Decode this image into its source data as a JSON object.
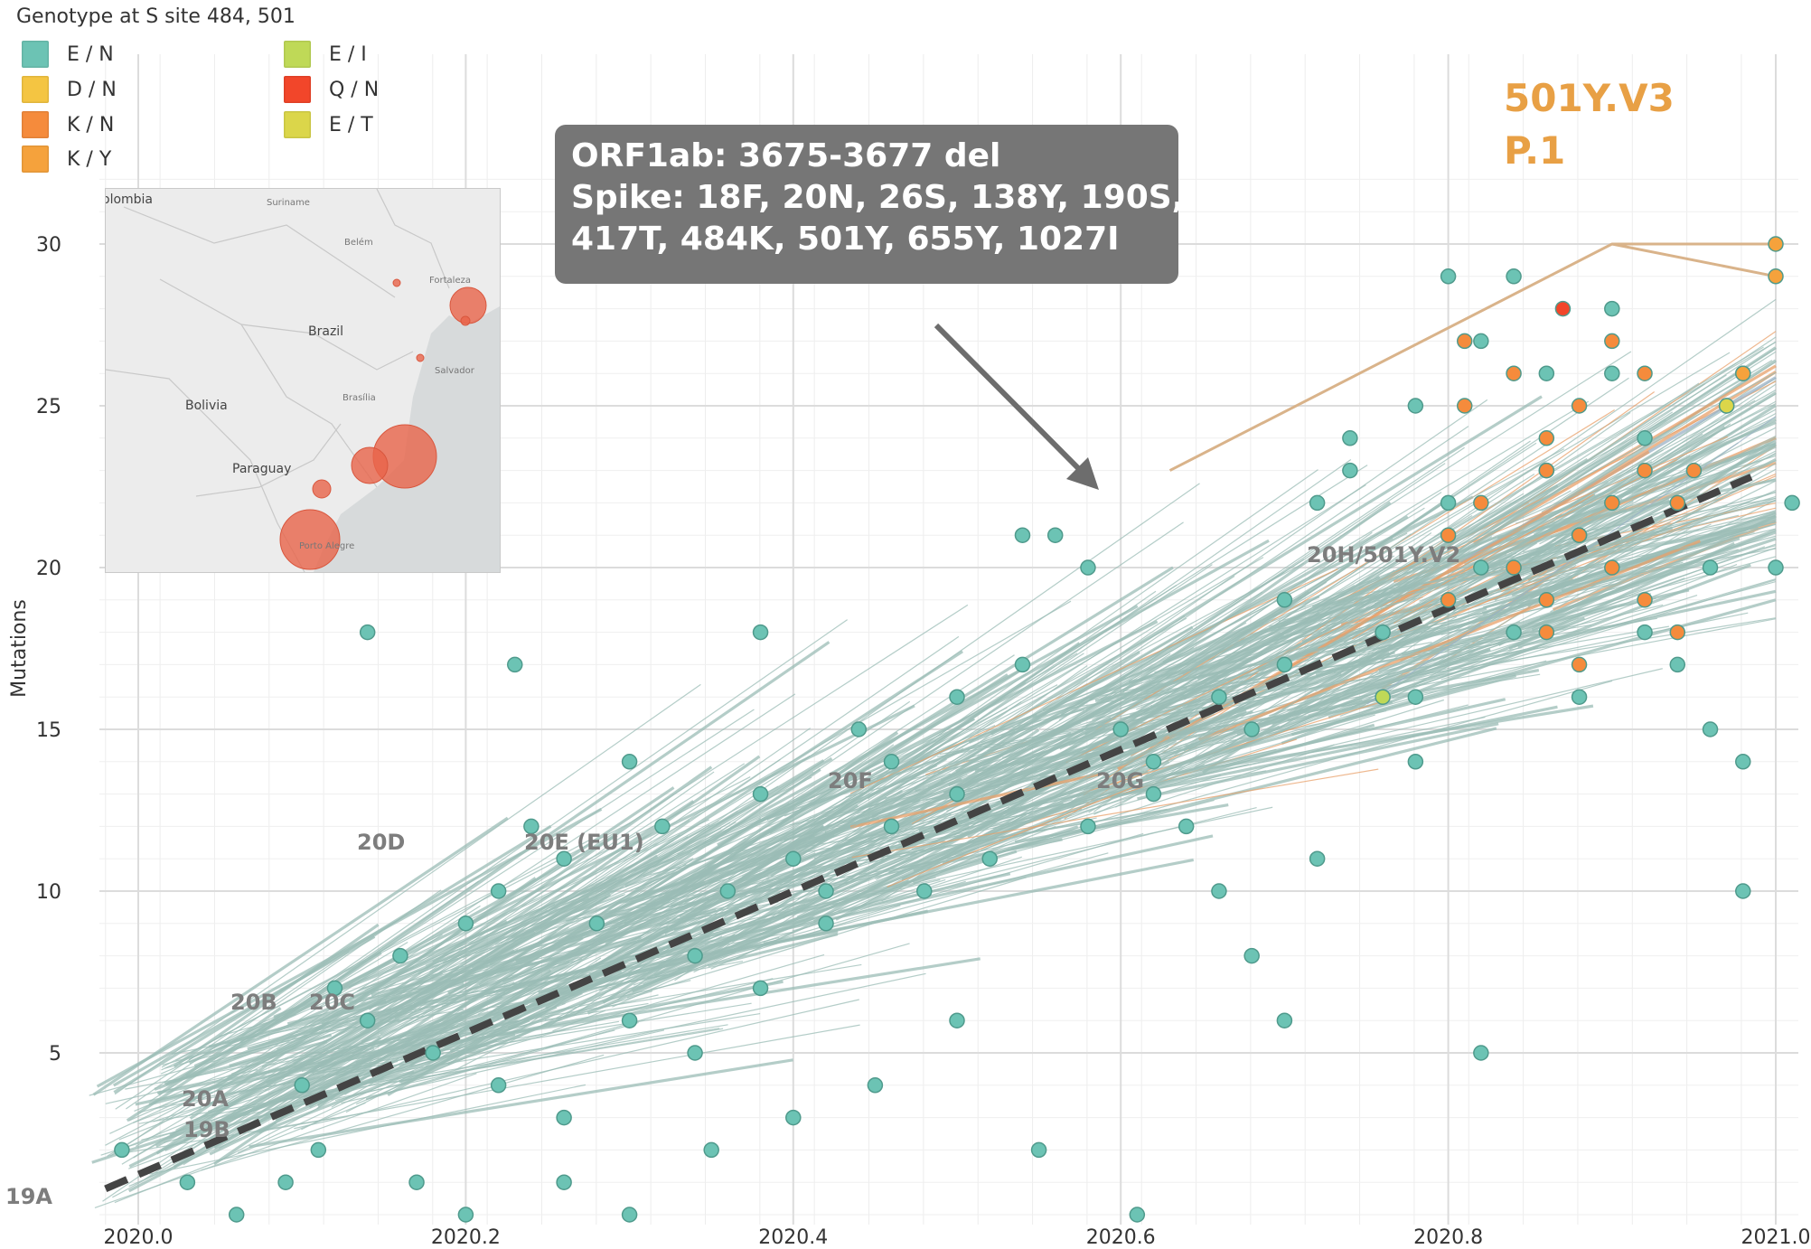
{
  "legend": {
    "title": "Genotype at S site 484, 501",
    "items": [
      {
        "label": "E / N",
        "color": "#6cc3b4"
      },
      {
        "label": "D / N",
        "color": "#f4c542"
      },
      {
        "label": "K / N",
        "color": "#f58b3c"
      },
      {
        "label": "K / Y",
        "color": "#f5a23c"
      },
      {
        "label": "E / I",
        "color": "#bfd957"
      },
      {
        "label": "Q / N",
        "color": "#f2462a"
      },
      {
        "label": "E / T",
        "color": "#dbd64a"
      }
    ]
  },
  "map": {
    "countries": [
      "olombia",
      "Brazil",
      "Bolivia",
      "Paraguay"
    ],
    "cities": [
      "Suriname",
      "Belém",
      "Fortaleza",
      "Salvador",
      "Brasília",
      "Porto Alegre"
    ],
    "bubble_color": "#e8644a"
  },
  "annotation": {
    "lines": [
      "ORF1ab: 3675-3677 del",
      "Spike: 18F, 20N, 26S, 138Y, 190S,",
      "417T, 484K, 501Y, 655Y, 1027I"
    ]
  },
  "variant_labels": [
    "501Y.V3",
    "P.1"
  ],
  "clade_labels": [
    "19A",
    "19B",
    "20A",
    "20B",
    "20C",
    "20D",
    "20E (EU1)",
    "20F",
    "20G",
    "20H/501Y.V2"
  ],
  "chart_data": {
    "type": "scatter",
    "title": "",
    "xlabel": "",
    "ylabel": "Mutations",
    "xlim": [
      2019.955,
      2021.01
    ],
    "ylim": [
      0,
      32.5
    ],
    "x_ticks": [
      "2020.0",
      "2020.2",
      "2020.4",
      "2020.6",
      "2020.8",
      "2021.0"
    ],
    "y_ticks": [
      "5",
      "10",
      "15",
      "20",
      "25",
      "30"
    ],
    "grid": true,
    "legend_position": "top-left",
    "clock_rate_line": {
      "style": "dashed",
      "color": "#444444",
      "x": [
        2019.98,
        2020.985
      ],
      "y": [
        0.8,
        22.8
      ]
    },
    "series": [
      {
        "name": "E / N",
        "color": "#6cc3b4",
        "points": [
          [
            2019.99,
            2
          ],
          [
            2020.14,
            18
          ],
          [
            2020.23,
            17
          ],
          [
            2020.38,
            18
          ],
          [
            2020.03,
            1
          ],
          [
            2020.06,
            0
          ],
          [
            2020.09,
            1
          ],
          [
            2020.11,
            2
          ],
          [
            2020.17,
            1
          ],
          [
            2020.2,
            0
          ],
          [
            2020.26,
            1
          ],
          [
            2020.3,
            0
          ],
          [
            2020.35,
            2
          ],
          [
            2020.4,
            3
          ],
          [
            2020.45,
            4
          ],
          [
            2020.5,
            6
          ],
          [
            2020.55,
            2
          ],
          [
            2020.61,
            0
          ],
          [
            2020.1,
            4
          ],
          [
            2020.12,
            7
          ],
          [
            2020.16,
            8
          ],
          [
            2020.2,
            9
          ],
          [
            2020.22,
            10
          ],
          [
            2020.24,
            12
          ],
          [
            2020.26,
            11
          ],
          [
            2020.28,
            9
          ],
          [
            2020.3,
            14
          ],
          [
            2020.32,
            12
          ],
          [
            2020.34,
            8
          ],
          [
            2020.36,
            10
          ],
          [
            2020.38,
            13
          ],
          [
            2020.4,
            11
          ],
          [
            2020.42,
            9
          ],
          [
            2020.44,
            15
          ],
          [
            2020.46,
            12
          ],
          [
            2020.48,
            10
          ],
          [
            2020.5,
            13
          ],
          [
            2020.52,
            11
          ],
          [
            2020.54,
            21
          ],
          [
            2020.56,
            21
          ],
          [
            2020.58,
            20
          ],
          [
            2020.6,
            15
          ],
          [
            2020.62,
            14
          ],
          [
            2020.64,
            12
          ],
          [
            2020.66,
            10
          ],
          [
            2020.68,
            15
          ],
          [
            2020.7,
            17
          ],
          [
            2020.72,
            22
          ],
          [
            2020.74,
            24
          ],
          [
            2020.76,
            18
          ],
          [
            2020.78,
            16
          ],
          [
            2020.8,
            22
          ],
          [
            2020.82,
            20
          ],
          [
            2020.84,
            18
          ],
          [
            2020.86,
            23
          ],
          [
            2020.88,
            21
          ],
          [
            2020.9,
            26
          ],
          [
            2020.92,
            24
          ],
          [
            2020.94,
            17
          ],
          [
            2020.96,
            15
          ],
          [
            2020.98,
            10
          ],
          [
            2021.0,
            20
          ],
          [
            2021.01,
            22
          ],
          [
            2020.8,
            29
          ],
          [
            2020.84,
            29
          ],
          [
            2020.9,
            28
          ],
          [
            2020.82,
            27
          ],
          [
            2020.86,
            26
          ],
          [
            2020.78,
            25
          ],
          [
            2020.74,
            23
          ],
          [
            2020.7,
            19
          ],
          [
            2020.66,
            16
          ],
          [
            2020.62,
            13
          ],
          [
            2020.58,
            12
          ],
          [
            2020.54,
            17
          ],
          [
            2020.5,
            16
          ],
          [
            2020.46,
            14
          ],
          [
            2020.42,
            10
          ],
          [
            2020.38,
            7
          ],
          [
            2020.34,
            5
          ],
          [
            2020.3,
            6
          ],
          [
            2020.26,
            3
          ],
          [
            2020.22,
            4
          ],
          [
            2020.18,
            5
          ],
          [
            2020.14,
            6
          ],
          [
            2020.7,
            6
          ],
          [
            2020.82,
            5
          ],
          [
            2020.68,
            8
          ],
          [
            2020.72,
            11
          ],
          [
            2020.78,
            14
          ],
          [
            2020.88,
            16
          ],
          [
            2020.92,
            18
          ],
          [
            2020.96,
            20
          ],
          [
            2020.98,
            14
          ]
        ]
      },
      {
        "name": "D / N",
        "color": "#f4c542",
        "points": [
          [
            2020.98,
            26
          ],
          [
            2020.97,
            25
          ]
        ]
      },
      {
        "name": "K / N",
        "color": "#f58b3c",
        "points": [
          [
            2020.81,
            27
          ],
          [
            2020.84,
            26
          ],
          [
            2020.88,
            25
          ],
          [
            2020.81,
            25
          ],
          [
            2020.9,
            27
          ],
          [
            2020.92,
            26
          ],
          [
            2020.86,
            23
          ],
          [
            2020.82,
            22
          ],
          [
            2020.8,
            21
          ],
          [
            2020.84,
            20
          ],
          [
            2020.86,
            19
          ],
          [
            2020.88,
            21
          ],
          [
            2020.9,
            22
          ],
          [
            2020.92,
            23
          ],
          [
            2020.94,
            22
          ],
          [
            2020.86,
            18
          ],
          [
            2020.88,
            17
          ],
          [
            2020.9,
            20
          ],
          [
            2020.92,
            19
          ],
          [
            2020.94,
            18
          ],
          [
            2020.8,
            19
          ],
          [
            2020.86,
            24
          ],
          [
            2020.95,
            23
          ]
        ]
      },
      {
        "name": "K / Y",
        "color": "#f5a23c",
        "points": [
          [
            2021.0,
            29
          ],
          [
            2021.0,
            30
          ],
          [
            2020.98,
            26
          ]
        ]
      },
      {
        "name": "E / I",
        "color": "#bfd957",
        "points": [
          [
            2020.76,
            16
          ]
        ]
      },
      {
        "name": "Q / N",
        "color": "#f2462a",
        "points": [
          [
            2020.87,
            28
          ]
        ]
      },
      {
        "name": "E / T",
        "color": "#dbd64a",
        "points": [
          [
            2020.97,
            25
          ]
        ]
      }
    ]
  }
}
